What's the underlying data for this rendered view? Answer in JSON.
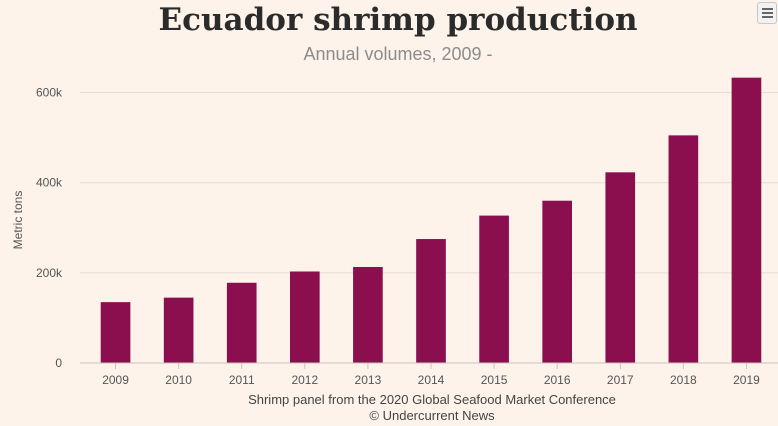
{
  "chart_data": {
    "type": "bar",
    "title": "Ecuador shrimp production",
    "subtitle": "Annual volumes, 2009 -",
    "xlabel": "",
    "ylabel": "Metric tons",
    "categories": [
      "2009",
      "2010",
      "2011",
      "2012",
      "2013",
      "2014",
      "2015",
      "2016",
      "2017",
      "2018",
      "2019"
    ],
    "series": [
      {
        "name": "Shrimp production",
        "values": [
          135000,
          145000,
          178000,
          203000,
          213000,
          275000,
          327000,
          360000,
          423000,
          505000,
          633000
        ]
      }
    ],
    "ylim": [
      0,
      650000
    ],
    "yticks": [
      {
        "value": 0,
        "label": "0"
      },
      {
        "value": 200000,
        "label": "200k"
      },
      {
        "value": 400000,
        "label": "400k"
      },
      {
        "value": 600000,
        "label": "600k"
      }
    ],
    "grid": true,
    "legend": "none",
    "caption": [
      "Shrimp panel from the 2020 Global Seafood Market Conference",
      "© Undercurrent News"
    ],
    "colors": {
      "bar": "#8b0f4e",
      "background": "#fdf3ea"
    }
  },
  "menu": {
    "icon": "hamburger-menu-icon"
  }
}
